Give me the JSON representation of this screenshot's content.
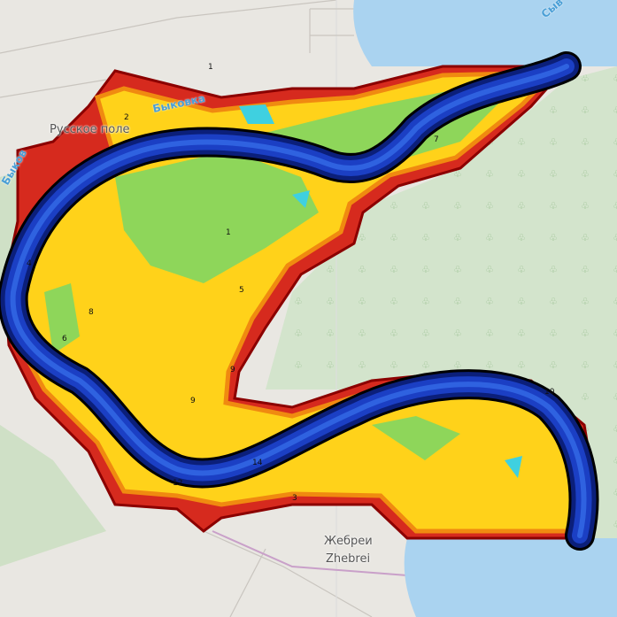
{
  "map": {
    "places": [
      {
        "name": "Русское поле"
      },
      {
        "name": "Жебреи"
      },
      {
        "name": "Zhebrei"
      }
    ],
    "water_labels": [
      "Быковка",
      "Быков",
      "Сыв"
    ],
    "depth_labels": [
      "1",
      "2",
      "4",
      "6",
      "8",
      "9",
      "10",
      "12",
      "14",
      "1",
      "5",
      "9",
      "7",
      "3"
    ],
    "colors": {
      "land": "#e9e7e2",
      "forest": "#d3e4cc",
      "water": "#aad3f0",
      "shallow_edge": "#c8102e",
      "mid": "#ffd21a",
      "green": "#8ed65a",
      "channel": "#1b3fc4",
      "channel_dark": "#0b1f7a"
    }
  }
}
